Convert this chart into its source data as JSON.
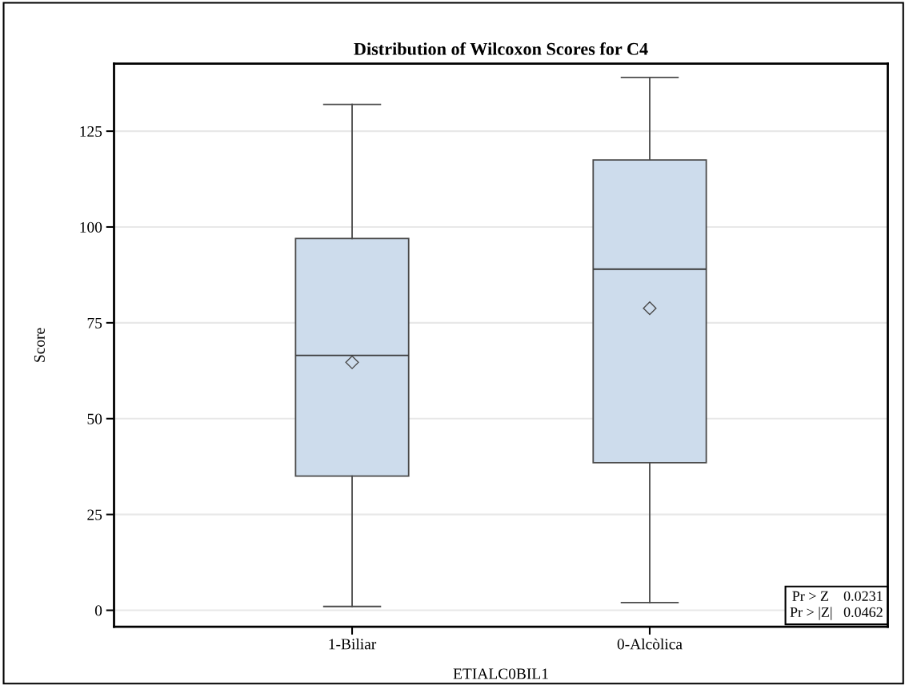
{
  "chart_data": {
    "type": "box",
    "title": "Distribution of Wilcoxon Scores for C4",
    "xlabel": "ETIALC0BIL1",
    "ylabel": "Score",
    "categories": [
      "1-Biliar",
      "0-Alcòlica"
    ],
    "boxes": [
      {
        "low": 1,
        "q1": 35,
        "median": 66.5,
        "q3": 97,
        "high": 132,
        "mean": 64.7
      },
      {
        "low": 2,
        "q1": 38.5,
        "median": 89,
        "q3": 117.5,
        "high": 139,
        "mean": 78.8
      }
    ],
    "color": "#cddcec",
    "ylim": [
      -4.3,
      142.6
    ],
    "yticks": [
      0,
      25,
      50,
      75,
      100,
      125
    ],
    "grid": "y",
    "marker": "diamond",
    "annotations": [
      "Pr > Z    0.0231\nPr > |Z|   0.0462"
    ]
  }
}
